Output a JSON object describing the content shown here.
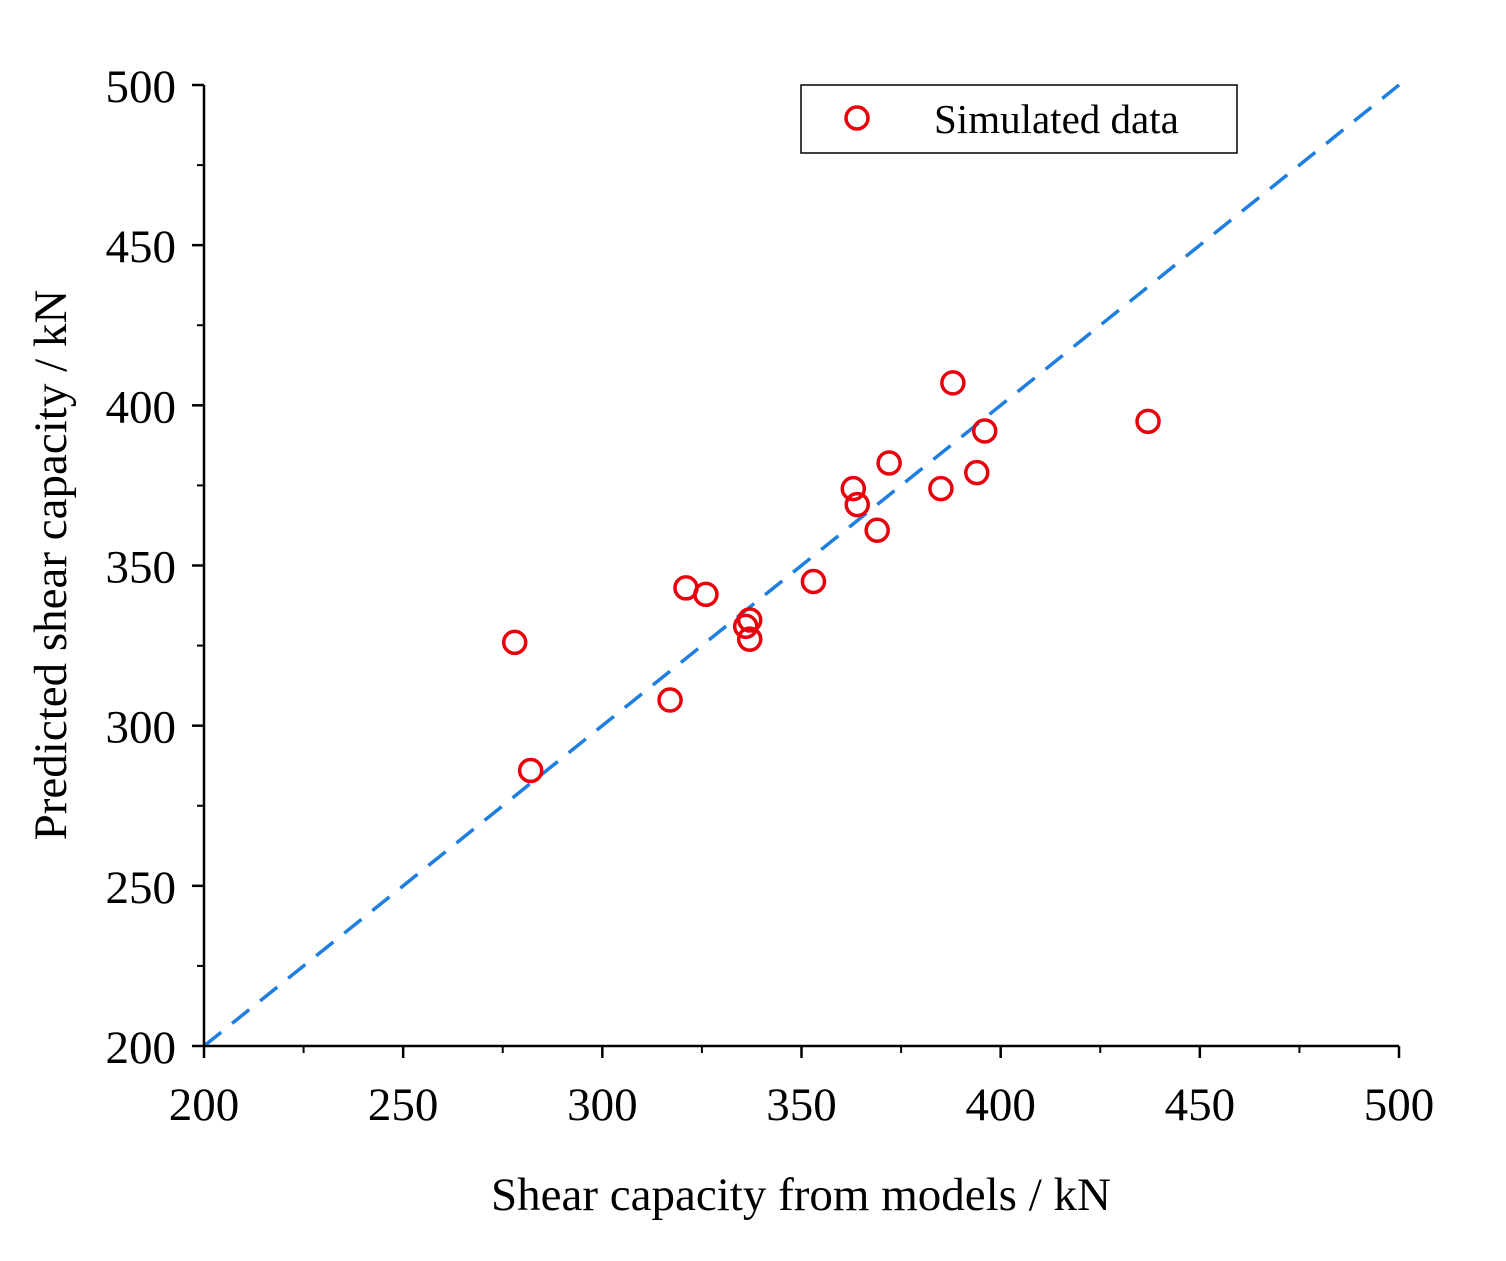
{
  "chart_data": {
    "type": "scatter",
    "title": "",
    "xlabel": "Shear capacity from models / kN",
    "ylabel": "Predicted shear capacity / kN",
    "xlim": [
      200,
      500
    ],
    "ylim": [
      200,
      500
    ],
    "x_ticks": [
      "200",
      "250",
      "300",
      "350",
      "400",
      "450",
      "500"
    ],
    "y_ticks": [
      "200",
      "250",
      "300",
      "350",
      "400",
      "450",
      "500"
    ],
    "grid": false,
    "legend_position": "top-right",
    "series": [
      {
        "name": "Simulated data",
        "marker": "open-circle",
        "color": "#e8000b",
        "points": [
          {
            "x": 278,
            "y": 326
          },
          {
            "x": 282,
            "y": 286
          },
          {
            "x": 317,
            "y": 308
          },
          {
            "x": 321,
            "y": 343
          },
          {
            "x": 326,
            "y": 341
          },
          {
            "x": 336,
            "y": 331
          },
          {
            "x": 337,
            "y": 333
          },
          {
            "x": 337,
            "y": 327
          },
          {
            "x": 353,
            "y": 345
          },
          {
            "x": 363,
            "y": 374
          },
          {
            "x": 364,
            "y": 369
          },
          {
            "x": 369,
            "y": 361
          },
          {
            "x": 372,
            "y": 382
          },
          {
            "x": 385,
            "y": 374
          },
          {
            "x": 388,
            "y": 407
          },
          {
            "x": 394,
            "y": 379
          },
          {
            "x": 396,
            "y": 392
          },
          {
            "x": 437,
            "y": 395
          }
        ]
      }
    ],
    "reference_line": {
      "style": "dashed",
      "color": "#1f7fe0",
      "from": [
        200,
        200
      ],
      "to": [
        500,
        500
      ]
    }
  }
}
